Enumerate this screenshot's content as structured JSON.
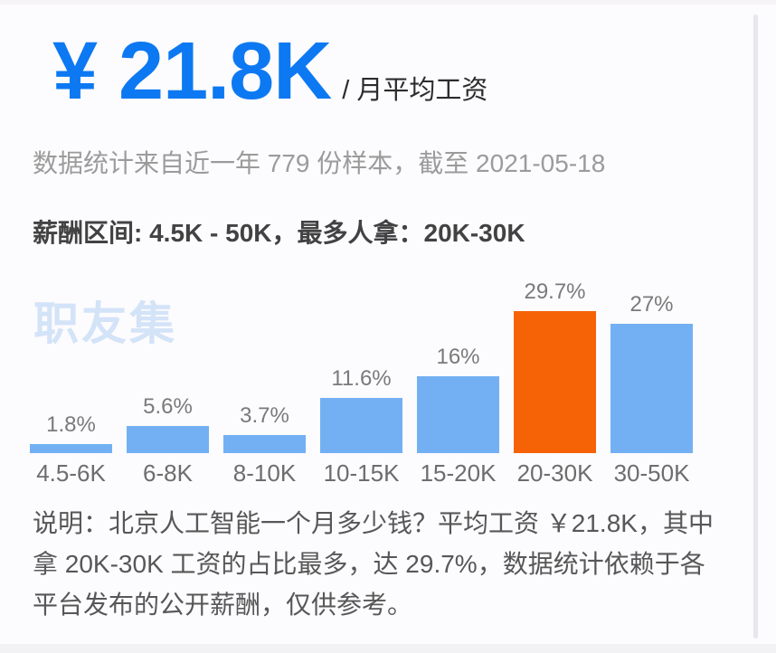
{
  "header": {
    "salary_amount": "¥ 21.8K",
    "salary_suffix": "/ 月平均工资"
  },
  "meta": {
    "sample_info": "数据统计来自近一年 779 份样本，截至 2021-05-18",
    "salary_range_line": "薪酬区间: 4.5K - 50K，最多人拿：20K-30K"
  },
  "watermark": "职友集",
  "chart_data": {
    "type": "bar",
    "categories": [
      "4.5-6K",
      "6-8K",
      "8-10K",
      "10-15K",
      "15-20K",
      "20-30K",
      "30-50K"
    ],
    "values": [
      1.8,
      5.6,
      3.7,
      11.6,
      16,
      29.7,
      27
    ],
    "value_labels": [
      "1.8%",
      "5.6%",
      "3.7%",
      "11.6%",
      "16%",
      "29.7%",
      "27%"
    ],
    "unit": "%",
    "ylim": [
      0,
      32
    ],
    "grid": false,
    "legend": false,
    "highlight_category": "20-30K",
    "highlight_index": 5,
    "bar_color": "#73b0f3",
    "highlight_color": "#f56306"
  },
  "description": {
    "lines": [
      "说明：北京人工智能一个月多少钱？平均工资 ￥21.8K，其中",
      "拿 20K-30K 工资的占比最多，达 29.7%，数据统计依赖于各",
      "平台发布的公开薪酬，仅供参考。"
    ]
  },
  "colors": {
    "accent_blue": "#0c79f2",
    "watermark_blue": "#d3e3f8"
  }
}
